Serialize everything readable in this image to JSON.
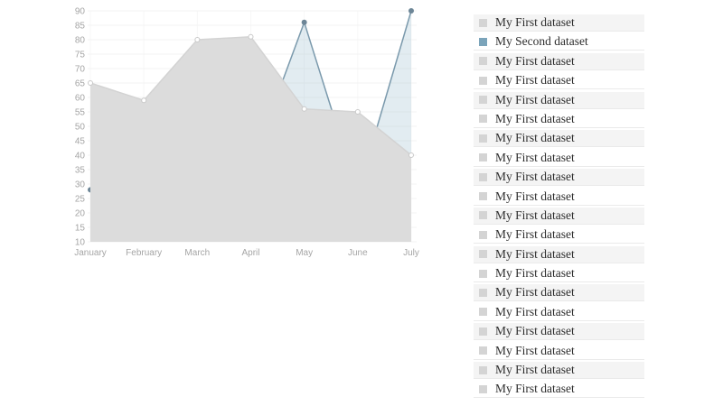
{
  "page": {
    "background": "#ffffff"
  },
  "chart_data": {
    "type": "area",
    "title": "",
    "xlabel": "",
    "ylabel": "",
    "categories": [
      "January",
      "February",
      "March",
      "April",
      "May",
      "June",
      "July"
    ],
    "y_tick_labels": [
      10,
      15,
      20,
      25,
      30,
      35,
      40,
      45,
      50,
      55,
      60,
      65,
      70,
      75,
      80,
      85,
      90
    ],
    "ylim": [
      10,
      90
    ],
    "ytick_step": 5,
    "grid": true,
    "grid_color": "#f3f3f3",
    "vertical_grid_color": "#f7f7f7",
    "axis_label_color": "#a5a5a5",
    "legend_position": "right-list",
    "series": [
      {
        "name": "My Second dataset",
        "values": [
          28,
          48,
          40,
          36,
          86,
          27,
          90
        ],
        "line_color": "#7a99ac",
        "point_color": "#6d8697",
        "point_border": "",
        "point_radius": 3,
        "fill_color": "rgba(151,187,205,0.28)"
      },
      {
        "name": "My First dataset",
        "values": [
          65,
          59,
          80,
          81,
          56,
          55,
          40
        ],
        "line_color": "#d3d3d3",
        "point_color": "#ffffff",
        "point_border": "#c9c9c9",
        "point_radius": 2.5,
        "fill_color": "#dcdcdc"
      }
    ]
  },
  "legend": {
    "swatch_colors": {
      "first": "#d4d4d4",
      "second": "#7ba4ba"
    },
    "items": [
      {
        "label": "My First dataset",
        "swatch": "#d4d4d4"
      },
      {
        "label": "My Second dataset",
        "swatch": "#7ba4ba"
      },
      {
        "label": "My First dataset",
        "swatch": "#d4d4d4"
      },
      {
        "label": "My First dataset",
        "swatch": "#d4d4d4"
      },
      {
        "label": "My First dataset",
        "swatch": "#d4d4d4"
      },
      {
        "label": "My First dataset",
        "swatch": "#d4d4d4"
      },
      {
        "label": "My First dataset",
        "swatch": "#d4d4d4"
      },
      {
        "label": "My First dataset",
        "swatch": "#d4d4d4"
      },
      {
        "label": "My First dataset",
        "swatch": "#d4d4d4"
      },
      {
        "label": "My First dataset",
        "swatch": "#d4d4d4"
      },
      {
        "label": "My First dataset",
        "swatch": "#d4d4d4"
      },
      {
        "label": "My First dataset",
        "swatch": "#d4d4d4"
      },
      {
        "label": "My First dataset",
        "swatch": "#d4d4d4"
      },
      {
        "label": "My First dataset",
        "swatch": "#d4d4d4"
      },
      {
        "label": "My First dataset",
        "swatch": "#d4d4d4"
      },
      {
        "label": "My First dataset",
        "swatch": "#d4d4d4"
      },
      {
        "label": "My First dataset",
        "swatch": "#d4d4d4"
      },
      {
        "label": "My First dataset",
        "swatch": "#d4d4d4"
      },
      {
        "label": "My First dataset",
        "swatch": "#d4d4d4"
      },
      {
        "label": "My First dataset",
        "swatch": "#d4d4d4"
      }
    ]
  }
}
